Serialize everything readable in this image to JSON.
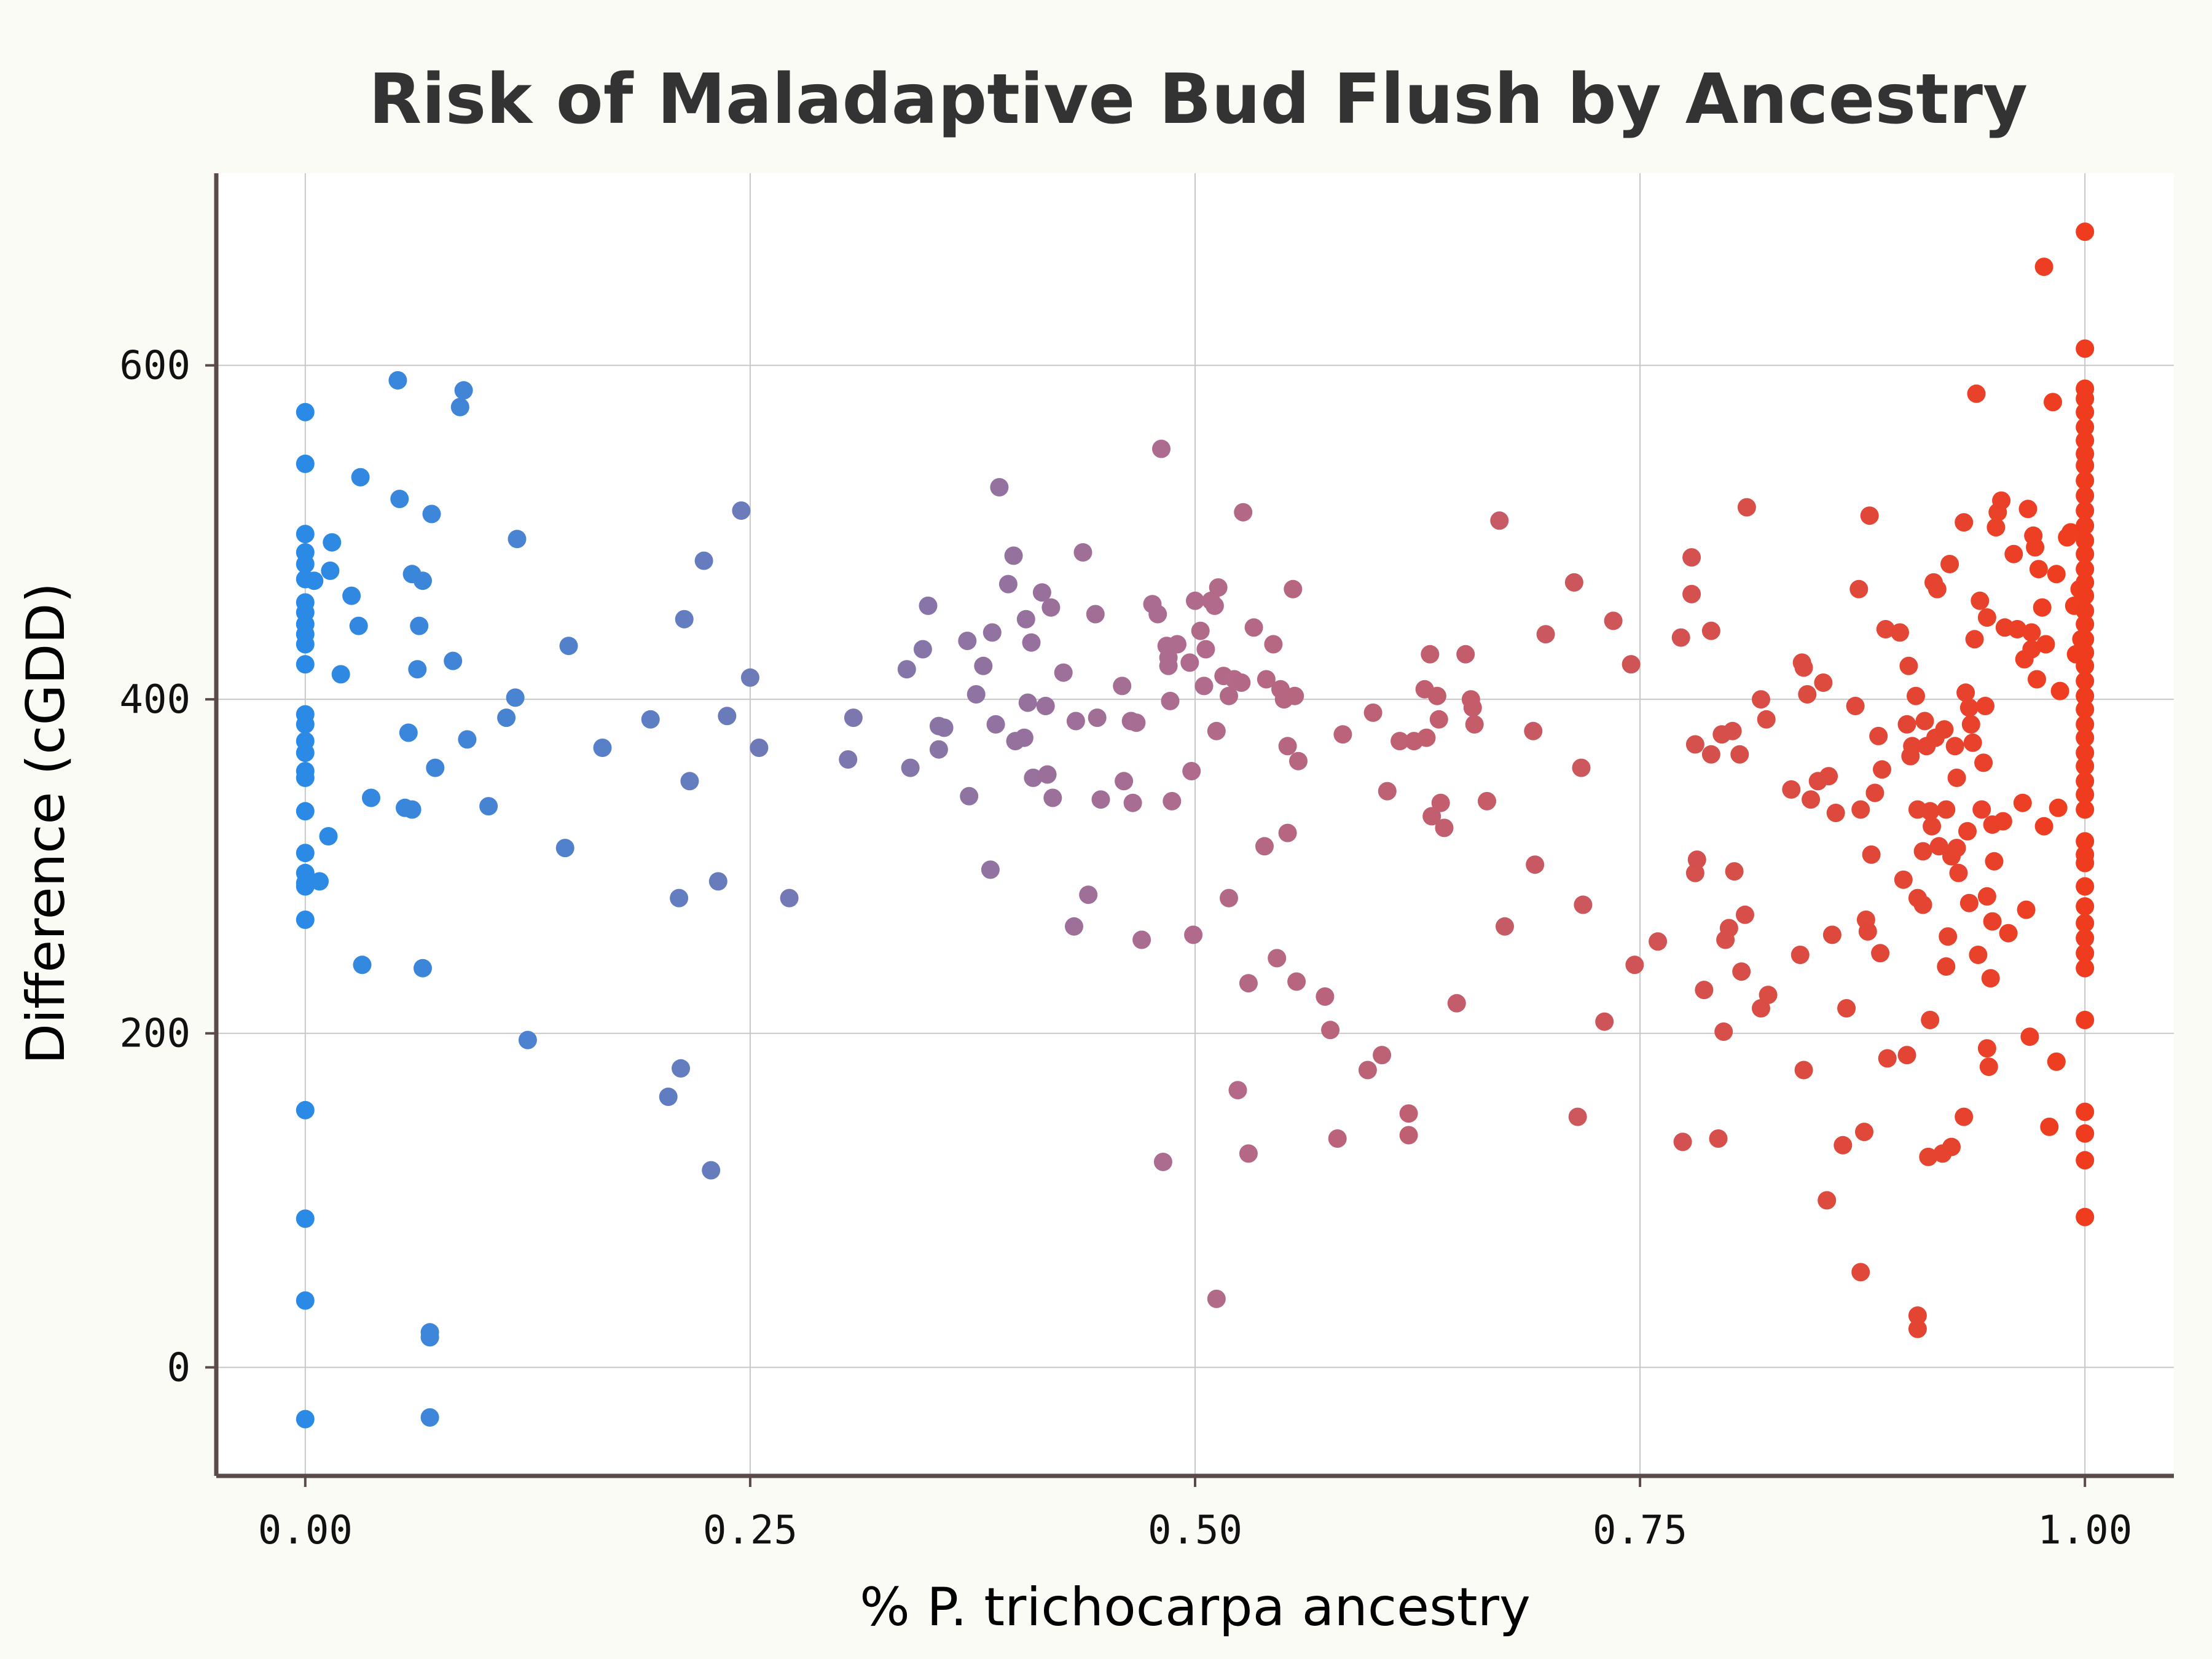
{
  "chart_data": {
    "type": "scatter",
    "title": "Risk of Maladaptive Bud Flush by Ancestry",
    "xlabel": "% P. trichocarpa ancestry",
    "ylabel": "Difference (cGDD)",
    "xlim": [
      -0.05,
      1.05
    ],
    "ylim": [
      -65,
      715
    ],
    "x_ticks": [
      0,
      0.25,
      0.5,
      0.75,
      1
    ],
    "x_tick_labels": [
      "0.00",
      "0.25",
      "0.50",
      "0.75",
      "1.00"
    ],
    "y_ticks": [
      0,
      200,
      400,
      600
    ],
    "y_tick_labels": [
      "0",
      "200",
      "400",
      "600"
    ],
    "grid": true,
    "legend": "none",
    "color_scale": {
      "low": "#2a8ae6",
      "mid": "#b06b8c",
      "high": "#f03c1e",
      "encodes": "x"
    },
    "points": [
      [
        0,
        572
      ],
      [
        0,
        541
      ],
      [
        0,
        499
      ],
      [
        0,
        488
      ],
      [
        0,
        481
      ],
      [
        0,
        472
      ],
      [
        0,
        458
      ],
      [
        0,
        452
      ],
      [
        0,
        445
      ],
      [
        0,
        439
      ],
      [
        0,
        433
      ],
      [
        0,
        421
      ],
      [
        0,
        391
      ],
      [
        0,
        385
      ],
      [
        0,
        375
      ],
      [
        0,
        368
      ],
      [
        0,
        357
      ],
      [
        0,
        353
      ],
      [
        0,
        333
      ],
      [
        0,
        308
      ],
      [
        0,
        296
      ],
      [
        0,
        290
      ],
      [
        0,
        288
      ],
      [
        0,
        268
      ],
      [
        0,
        154
      ],
      [
        0,
        89
      ],
      [
        0,
        40
      ],
      [
        0,
        -31
      ],
      [
        0.005,
        471
      ],
      [
        0.008,
        291
      ],
      [
        0.013,
        318
      ],
      [
        0.015,
        494
      ],
      [
        0.014,
        477
      ],
      [
        0.02,
        415
      ],
      [
        0.026,
        462
      ],
      [
        0.03,
        444
      ],
      [
        0.031,
        533
      ],
      [
        0.032,
        241
      ],
      [
        0.037,
        341
      ],
      [
        0.052,
        591
      ],
      [
        0.053,
        520
      ],
      [
        0.056,
        335
      ],
      [
        0.058,
        380
      ],
      [
        0.06,
        334
      ],
      [
        0.06,
        475
      ],
      [
        0.063,
        418
      ],
      [
        0.064,
        444
      ],
      [
        0.066,
        471
      ],
      [
        0.066,
        239
      ],
      [
        0.07,
        21
      ],
      [
        0.07,
        18
      ],
      [
        0.07,
        -30
      ],
      [
        0.071,
        511
      ],
      [
        0.073,
        359
      ],
      [
        0.083,
        423
      ],
      [
        0.087,
        575
      ],
      [
        0.089,
        585
      ],
      [
        0.091,
        376
      ],
      [
        0.103,
        336
      ],
      [
        0.113,
        389
      ],
      [
        0.118,
        401
      ],
      [
        0.119,
        496
      ],
      [
        0.125,
        196
      ],
      [
        0.146,
        311
      ],
      [
        0.148,
        432
      ],
      [
        0.167,
        371
      ],
      [
        0.194,
        388
      ],
      [
        0.204,
        162
      ],
      [
        0.21,
        281
      ],
      [
        0.211,
        179
      ],
      [
        0.213,
        448
      ],
      [
        0.216,
        351
      ],
      [
        0.224,
        483
      ],
      [
        0.228,
        118
      ],
      [
        0.232,
        291
      ],
      [
        0.237,
        390
      ],
      [
        0.245,
        513
      ],
      [
        0.25,
        413
      ],
      [
        0.255,
        371
      ],
      [
        0.272,
        281
      ],
      [
        0.305,
        364
      ],
      [
        0.308,
        389
      ],
      [
        0.34,
        359
      ],
      [
        0.347,
        430
      ],
      [
        0.35,
        456
      ],
      [
        0.356,
        370
      ],
      [
        0.356,
        384
      ],
      [
        0.359,
        383
      ],
      [
        0.338,
        418
      ],
      [
        0.372,
        435
      ],
      [
        0.373,
        342
      ],
      [
        0.377,
        403
      ],
      [
        0.381,
        420
      ],
      [
        0.385,
        298
      ],
      [
        0.386,
        440
      ],
      [
        0.388,
        385
      ],
      [
        0.39,
        527
      ],
      [
        0.395,
        469
      ],
      [
        0.398,
        486
      ],
      [
        0.399,
        375
      ],
      [
        0.404,
        377
      ],
      [
        0.405,
        448
      ],
      [
        0.406,
        398
      ],
      [
        0.408,
        434
      ],
      [
        0.409,
        353
      ],
      [
        0.414,
        464
      ],
      [
        0.416,
        396
      ],
      [
        0.417,
        355
      ],
      [
        0.419,
        455
      ],
      [
        0.42,
        341
      ],
      [
        0.426,
        416
      ],
      [
        0.432,
        264
      ],
      [
        0.433,
        387
      ],
      [
        0.437,
        488
      ],
      [
        0.44,
        283
      ],
      [
        0.444,
        451
      ],
      [
        0.445,
        389
      ],
      [
        0.447,
        340
      ],
      [
        0.459,
        408
      ],
      [
        0.46,
        351
      ],
      [
        0.464,
        387
      ],
      [
        0.465,
        338
      ],
      [
        0.467,
        386
      ],
      [
        0.47,
        256
      ],
      [
        0.476,
        457
      ],
      [
        0.479,
        451
      ],
      [
        0.481,
        550
      ],
      [
        0.482,
        123
      ],
      [
        0.484,
        432
      ],
      [
        0.485,
        420
      ],
      [
        0.485,
        425
      ],
      [
        0.486,
        399
      ],
      [
        0.487,
        339
      ],
      [
        0.49,
        433
      ],
      [
        0.497,
        422
      ],
      [
        0.498,
        357
      ],
      [
        0.499,
        259
      ],
      [
        0.5,
        459
      ],
      [
        0.503,
        441
      ],
      [
        0.505,
        408
      ],
      [
        0.506,
        430
      ],
      [
        0.509,
        459
      ],
      [
        0.511,
        456
      ],
      [
        0.512,
        381
      ],
      [
        0.512,
        41
      ],
      [
        0.513,
        467
      ],
      [
        0.516,
        414
      ],
      [
        0.519,
        402
      ],
      [
        0.519,
        281
      ],
      [
        0.522,
        412
      ],
      [
        0.524,
        166
      ],
      [
        0.526,
        410
      ],
      [
        0.527,
        512
      ],
      [
        0.53,
        128
      ],
      [
        0.53,
        230
      ],
      [
        0.533,
        443
      ],
      [
        0.539,
        312
      ],
      [
        0.54,
        412
      ],
      [
        0.544,
        433
      ],
      [
        0.546,
        245
      ],
      [
        0.548,
        406
      ],
      [
        0.55,
        400
      ],
      [
        0.552,
        372
      ],
      [
        0.552,
        320
      ],
      [
        0.555,
        466
      ],
      [
        0.556,
        402
      ],
      [
        0.557,
        231
      ],
      [
        0.558,
        363
      ],
      [
        0.573,
        222
      ],
      [
        0.576,
        202
      ],
      [
        0.58,
        137
      ],
      [
        0.583,
        379
      ],
      [
        0.6,
        392
      ],
      [
        0.597,
        178
      ],
      [
        0.605,
        187
      ],
      [
        0.608,
        345
      ],
      [
        0.615,
        375
      ],
      [
        0.62,
        152
      ],
      [
        0.62,
        139
      ],
      [
        0.623,
        375
      ],
      [
        0.629,
        406
      ],
      [
        0.63,
        377
      ],
      [
        0.632,
        427
      ],
      [
        0.633,
        330
      ],
      [
        0.636,
        402
      ],
      [
        0.637,
        388
      ],
      [
        0.638,
        338
      ],
      [
        0.64,
        323
      ],
      [
        0.647,
        218
      ],
      [
        0.652,
        427
      ],
      [
        0.655,
        400
      ],
      [
        0.656,
        395
      ],
      [
        0.657,
        385
      ],
      [
        0.664,
        339
      ],
      [
        0.671,
        507
      ],
      [
        0.674,
        264
      ],
      [
        0.69,
        381
      ],
      [
        0.691,
        301
      ],
      [
        0.697,
        439
      ],
      [
        0.713,
        470
      ],
      [
        0.715,
        150
      ],
      [
        0.717,
        359
      ],
      [
        0.718,
        277
      ],
      [
        0.73,
        207
      ],
      [
        0.735,
        447
      ],
      [
        0.745,
        421
      ],
      [
        0.747,
        241
      ],
      [
        0.76,
        255
      ],
      [
        0.773,
        437
      ],
      [
        0.774,
        135
      ],
      [
        0.779,
        485
      ],
      [
        0.779,
        463
      ],
      [
        0.781,
        296
      ],
      [
        0.781,
        373
      ],
      [
        0.782,
        304
      ],
      [
        0.786,
        226
      ],
      [
        0.79,
        441
      ],
      [
        0.79,
        367
      ],
      [
        0.794,
        137
      ],
      [
        0.796,
        379
      ],
      [
        0.797,
        201
      ],
      [
        0.798,
        256
      ],
      [
        0.8,
        263
      ],
      [
        0.802,
        381
      ],
      [
        0.803,
        297
      ],
      [
        0.806,
        367
      ],
      [
        0.807,
        237
      ],
      [
        0.809,
        271
      ],
      [
        0.81,
        515
      ],
      [
        0.818,
        215
      ],
      [
        0.818,
        400
      ],
      [
        0.821,
        388
      ],
      [
        0.822,
        223
      ],
      [
        0.835,
        346
      ],
      [
        0.84,
        247
      ],
      [
        0.841,
        422
      ],
      [
        0.842,
        178
      ],
      [
        0.842,
        419
      ],
      [
        0.844,
        403
      ],
      [
        0.846,
        340
      ],
      [
        0.85,
        351
      ],
      [
        0.853,
        410
      ],
      [
        0.855,
        100
      ],
      [
        0.856,
        354
      ],
      [
        0.858,
        259
      ],
      [
        0.86,
        332
      ],
      [
        0.864,
        133
      ],
      [
        0.866,
        215
      ],
      [
        0.871,
        396
      ],
      [
        0.873,
        466
      ],
      [
        0.874,
        57
      ],
      [
        0.874,
        334
      ],
      [
        0.876,
        141
      ],
      [
        0.877,
        268
      ],
      [
        0.878,
        261
      ],
      [
        0.879,
        510
      ],
      [
        0.88,
        307
      ],
      [
        0.882,
        344
      ],
      [
        0.884,
        378
      ],
      [
        0.885,
        248
      ],
      [
        0.886,
        358
      ],
      [
        0.888,
        442
      ],
      [
        0.889,
        185
      ],
      [
        0.896,
        440
      ],
      [
        0.898,
        292
      ],
      [
        0.9,
        385
      ],
      [
        0.9,
        187
      ],
      [
        0.901,
        420
      ],
      [
        0.902,
        366
      ],
      [
        0.903,
        372
      ],
      [
        0.905,
        402
      ],
      [
        0.906,
        334
      ],
      [
        0.906,
        281
      ],
      [
        0.906,
        31
      ],
      [
        0.906,
        23
      ],
      [
        0.909,
        277
      ],
      [
        0.909,
        309
      ],
      [
        0.91,
        387
      ],
      [
        0.911,
        372
      ],
      [
        0.912,
        126
      ],
      [
        0.913,
        333
      ],
      [
        0.913,
        208
      ],
      [
        0.914,
        324
      ],
      [
        0.915,
        470
      ],
      [
        0.916,
        377
      ],
      [
        0.917,
        466
      ],
      [
        0.918,
        312
      ],
      [
        0.92,
        128
      ],
      [
        0.921,
        382
      ],
      [
        0.922,
        334
      ],
      [
        0.922,
        240
      ],
      [
        0.923,
        258
      ],
      [
        0.924,
        481
      ],
      [
        0.925,
        132
      ],
      [
        0.925,
        306
      ],
      [
        0.927,
        372
      ],
      [
        0.928,
        311
      ],
      [
        0.928,
        353
      ],
      [
        0.929,
        296
      ],
      [
        0.932,
        150
      ],
      [
        0.932,
        506
      ],
      [
        0.933,
        404
      ],
      [
        0.934,
        321
      ],
      [
        0.935,
        278
      ],
      [
        0.935,
        395
      ],
      [
        0.936,
        385
      ],
      [
        0.937,
        374
      ],
      [
        0.938,
        436
      ],
      [
        0.939,
        583
      ],
      [
        0.94,
        247
      ],
      [
        0.941,
        459
      ],
      [
        0.942,
        334
      ],
      [
        0.943,
        362
      ],
      [
        0.944,
        396
      ],
      [
        0.945,
        282
      ],
      [
        0.945,
        449
      ],
      [
        0.945,
        191
      ],
      [
        0.946,
        180
      ],
      [
        0.947,
        233
      ],
      [
        0.948,
        325
      ],
      [
        0.948,
        267
      ],
      [
        0.949,
        303
      ],
      [
        0.95,
        503
      ],
      [
        0.951,
        512
      ],
      [
        0.953,
        519
      ],
      [
        0.954,
        327
      ],
      [
        0.955,
        443
      ],
      [
        0.957,
        260
      ],
      [
        0.96,
        487
      ],
      [
        0.962,
        442
      ],
      [
        0.965,
        338
      ],
      [
        0.966,
        424
      ],
      [
        0.967,
        274
      ],
      [
        0.968,
        514
      ],
      [
        0.969,
        198
      ],
      [
        0.97,
        430
      ],
      [
        0.97,
        440
      ],
      [
        0.971,
        498
      ],
      [
        0.972,
        491
      ],
      [
        0.973,
        412
      ],
      [
        0.974,
        478
      ],
      [
        0.976,
        455
      ],
      [
        0.977,
        659
      ],
      [
        0.977,
        324
      ],
      [
        0.978,
        433
      ],
      [
        0.98,
        144
      ],
      [
        0.982,
        578
      ],
      [
        0.984,
        475
      ],
      [
        0.984,
        183
      ],
      [
        0.985,
        335
      ],
      [
        0.986,
        405
      ],
      [
        0.99,
        497
      ],
      [
        0.992,
        500
      ],
      [
        0.994,
        456
      ],
      [
        0.995,
        427
      ],
      [
        0.997,
        466
      ],
      [
        0.998,
        436
      ],
      [
        1,
        680
      ],
      [
        1,
        610
      ],
      [
        1,
        586
      ],
      [
        1,
        580
      ],
      [
        1,
        572
      ],
      [
        1,
        563
      ],
      [
        1,
        555
      ],
      [
        1,
        547
      ],
      [
        1,
        540
      ],
      [
        1,
        531
      ],
      [
        1,
        522
      ],
      [
        1,
        513
      ],
      [
        1,
        504
      ],
      [
        1,
        495
      ],
      [
        1,
        487
      ],
      [
        1,
        478
      ],
      [
        1,
        470
      ],
      [
        1,
        462
      ],
      [
        1,
        453
      ],
      [
        1,
        445
      ],
      [
        1,
        436
      ],
      [
        1,
        428
      ],
      [
        1,
        420
      ],
      [
        1,
        411
      ],
      [
        1,
        402
      ],
      [
        1,
        394
      ],
      [
        1,
        385
      ],
      [
        1,
        377
      ],
      [
        1,
        368
      ],
      [
        1,
        360
      ],
      [
        1,
        351
      ],
      [
        1,
        343
      ],
      [
        1,
        334
      ],
      [
        1,
        315
      ],
      [
        1,
        307
      ],
      [
        1,
        302
      ],
      [
        1,
        288
      ],
      [
        1,
        276
      ],
      [
        1,
        266
      ],
      [
        1,
        257
      ],
      [
        1,
        248
      ],
      [
        1,
        239
      ],
      [
        1,
        208
      ],
      [
        1,
        153
      ],
      [
        1,
        140
      ],
      [
        1,
        124
      ],
      [
        1,
        90
      ]
    ]
  }
}
